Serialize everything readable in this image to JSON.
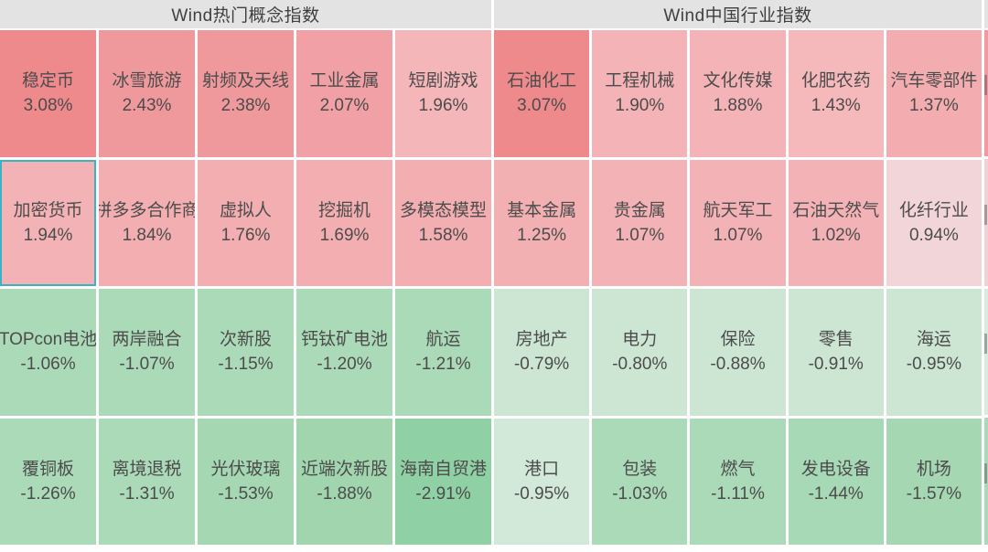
{
  "accent": {
    "selected_border": "#3ab3c5",
    "header_bg": "#e3e3e3",
    "header_text": "#3f3f3f",
    "cell_text": "#4c4c4c",
    "gap_color": "#ffffff"
  },
  "sections": [
    {
      "title": "Wind热门概念指数",
      "rows": [
        [
          {
            "label": "稳定币",
            "value": "3.08%",
            "color": "#ee898c",
            "selected": false
          },
          {
            "label": "冰雪旅游",
            "value": "2.43%",
            "color": "#f0999d",
            "selected": false
          },
          {
            "label": "射频及天线",
            "value": "2.38%",
            "color": "#f0999d",
            "selected": false
          },
          {
            "label": "工业金属",
            "value": "2.07%",
            "color": "#f1a1a5",
            "selected": false
          },
          {
            "label": "短剧游戏",
            "value": "1.96%",
            "color": "#f5b6b9",
            "selected": false
          }
        ],
        [
          {
            "label": "加密货币",
            "value": "1.94%",
            "color": "#f3b3b6",
            "selected": true
          },
          {
            "label": "拼多多合作商",
            "value": "1.84%",
            "color": "#f2aeb1",
            "selected": false
          },
          {
            "label": "虚拟人",
            "value": "1.76%",
            "color": "#f2aeb1",
            "selected": false
          },
          {
            "label": "挖掘机",
            "value": "1.69%",
            "color": "#f2aeb1",
            "selected": false
          },
          {
            "label": "多模态模型",
            "value": "1.58%",
            "color": "#f2aeb1",
            "selected": false
          }
        ],
        [
          {
            "label": "TOPcon电池",
            "value": "-1.06%",
            "color": "#abdab8",
            "selected": false
          },
          {
            "label": "两岸融合",
            "value": "-1.07%",
            "color": "#abdab8",
            "selected": false
          },
          {
            "label": "次新股",
            "value": "-1.15%",
            "color": "#abdab8",
            "selected": false
          },
          {
            "label": "钙钛矿电池",
            "value": "-1.20%",
            "color": "#abdab8",
            "selected": false
          },
          {
            "label": "航运",
            "value": "-1.21%",
            "color": "#abdab8",
            "selected": false
          }
        ],
        [
          {
            "label": "覆铜板",
            "value": "-1.26%",
            "color": "#abdab8",
            "selected": false
          },
          {
            "label": "离境退税",
            "value": "-1.31%",
            "color": "#abdab8",
            "selected": false
          },
          {
            "label": "光伏玻璃",
            "value": "-1.53%",
            "color": "#a4d7b2",
            "selected": false
          },
          {
            "label": "近端次新股",
            "value": "-1.88%",
            "color": "#a0d5ae",
            "selected": false
          },
          {
            "label": "海南自贸港",
            "value": "-2.91%",
            "color": "#8fd0a4",
            "selected": false
          }
        ]
      ]
    },
    {
      "title": "Wind中国行业指数",
      "rows": [
        [
          {
            "label": "石油化工",
            "value": "3.07%",
            "color": "#ee898c",
            "selected": false
          },
          {
            "label": "工程机械",
            "value": "1.90%",
            "color": "#f4b3b6",
            "selected": false
          },
          {
            "label": "文化传媒",
            "value": "1.88%",
            "color": "#f4b3b6",
            "selected": false
          },
          {
            "label": "化肥农药",
            "value": "1.43%",
            "color": "#f5b9bb",
            "selected": false
          },
          {
            "label": "汽车零部件",
            "value": "1.37%",
            "color": "#f3adb0",
            "selected": false
          }
        ],
        [
          {
            "label": "基本金属",
            "value": "1.25%",
            "color": "#f3b0b3",
            "selected": false
          },
          {
            "label": "贵金属",
            "value": "1.07%",
            "color": "#f3b3b6",
            "selected": false
          },
          {
            "label": "航天军工",
            "value": "1.07%",
            "color": "#f3b3b6",
            "selected": false
          },
          {
            "label": "石油天然气",
            "value": "1.02%",
            "color": "#f3b3b6",
            "selected": false
          },
          {
            "label": "化纤行业",
            "value": "0.94%",
            "color": "#f2d5d8",
            "selected": false
          }
        ],
        [
          {
            "label": "房地产",
            "value": "-0.79%",
            "color": "#cde6d4",
            "selected": false
          },
          {
            "label": "电力",
            "value": "-0.80%",
            "color": "#cde6d4",
            "selected": false
          },
          {
            "label": "保险",
            "value": "-0.88%",
            "color": "#cde6d4",
            "selected": false
          },
          {
            "label": "零售",
            "value": "-0.91%",
            "color": "#cde6d4",
            "selected": false
          },
          {
            "label": "海运",
            "value": "-0.95%",
            "color": "#cde6d4",
            "selected": false
          }
        ],
        [
          {
            "label": "港口",
            "value": "-0.95%",
            "color": "#d2e8d9",
            "selected": false
          },
          {
            "label": "包装",
            "value": "-1.03%",
            "color": "#abdab8",
            "selected": false
          },
          {
            "label": "燃气",
            "value": "-1.11%",
            "color": "#abdab8",
            "selected": false
          },
          {
            "label": "发电设备",
            "value": "-1.44%",
            "color": "#a8d9b6",
            "selected": false
          },
          {
            "label": "机场",
            "value": "-1.57%",
            "color": "#a5d7b3",
            "selected": false
          }
        ]
      ]
    }
  ],
  "clipped_column": {
    "header_color": "#e3e3e3",
    "row_colors": [
      "#f09a9e",
      "#f0d1d5",
      "#d9ebe0",
      "#abdab8"
    ]
  },
  "chart_data": [
    {
      "type": "heatmap",
      "title": "Wind热门概念指数",
      "layout": "4 rows x 5 cols, row-major",
      "unit": "%",
      "labels": [
        "稳定币",
        "冰雪旅游",
        "射频及天线",
        "工业金属",
        "短剧游戏",
        "加密货币",
        "拼多多合作商",
        "虚拟人",
        "挖掘机",
        "多模态模型",
        "TOPcon电池",
        "两岸融合",
        "次新股",
        "钙钛矿电池",
        "航运",
        "覆铜板",
        "离境退税",
        "光伏玻璃",
        "近端次新股",
        "海南自贸港"
      ],
      "values": [
        3.08,
        2.43,
        2.38,
        2.07,
        1.96,
        1.94,
        1.84,
        1.76,
        1.69,
        1.58,
        -1.06,
        -1.07,
        -1.15,
        -1.2,
        -1.21,
        -1.26,
        -1.31,
        -1.53,
        -1.88,
        -2.91
      ],
      "color_encoding": "red/pink = positive change, green = negative change; saturation scales with magnitude"
    },
    {
      "type": "heatmap",
      "title": "Wind中国行业指数",
      "layout": "4 rows x 5 cols, row-major",
      "unit": "%",
      "labels": [
        "石油化工",
        "工程机械",
        "文化传媒",
        "化肥农药",
        "汽车零部件",
        "基本金属",
        "贵金属",
        "航天军工",
        "石油天然气",
        "化纤行业",
        "房地产",
        "电力",
        "保险",
        "零售",
        "海运",
        "港口",
        "包装",
        "燃气",
        "发电设备",
        "机场"
      ],
      "values": [
        3.07,
        1.9,
        1.88,
        1.43,
        1.37,
        1.25,
        1.07,
        1.07,
        1.02,
        0.94,
        -0.79,
        -0.8,
        -0.88,
        -0.91,
        -0.95,
        -0.95,
        -1.03,
        -1.11,
        -1.44,
        -1.57
      ],
      "color_encoding": "red/pink = positive change, green = negative change; saturation scales with magnitude"
    }
  ]
}
